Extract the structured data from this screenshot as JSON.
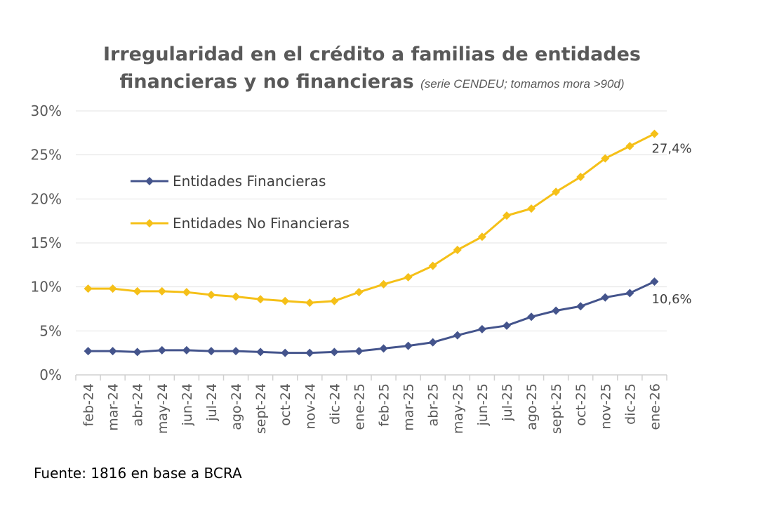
{
  "chart_data": {
    "type": "line",
    "title": "Irregularidad en el crédito a familias de entidades financieras y no financieras",
    "title_line1": "Irregularidad en el crédito a familias de entidades",
    "title_line2": "financieras y no financieras",
    "subtitle": "(serie CENDEU; tomamos mora >90d)",
    "categories": [
      "feb-24",
      "mar-24",
      "abr-24",
      "may-24",
      "jun-24",
      "jul-24",
      "ago-24",
      "sept-24",
      "oct-24",
      "nov-24",
      "dic-24",
      "ene-25",
      "feb-25",
      "mar-25",
      "abr-25",
      "may-25",
      "jun-25",
      "jul-25",
      "ago-25",
      "sept-25",
      "oct-25",
      "nov-25",
      "dic-25",
      "ene-26"
    ],
    "yticks": [
      "0%",
      "5%",
      "10%",
      "15%",
      "20%",
      "25%",
      "30%"
    ],
    "ylim": [
      0,
      30
    ],
    "grid": true,
    "legend_position": "top-left",
    "series": [
      {
        "name": "Entidades Financieras",
        "color": "#44548C",
        "values": [
          2.7,
          2.7,
          2.6,
          2.8,
          2.8,
          2.7,
          2.7,
          2.6,
          2.5,
          2.5,
          2.6,
          2.7,
          3.0,
          3.3,
          3.7,
          4.5,
          5.2,
          5.6,
          6.6,
          7.3,
          7.8,
          8.8,
          9.3,
          10.6
        ],
        "end_label": "10,6%"
      },
      {
        "name": "Entidades No Financieras",
        "color": "#F5C018",
        "values": [
          9.8,
          9.8,
          9.5,
          9.5,
          9.4,
          9.1,
          8.9,
          8.6,
          8.4,
          8.2,
          8.4,
          9.4,
          10.3,
          11.1,
          12.4,
          14.2,
          15.7,
          18.1,
          18.9,
          20.8,
          22.5,
          24.6,
          26.0,
          27.4
        ],
        "end_label": "27,4%"
      }
    ]
  },
  "source": "Fuente: 1816 en base a BCRA"
}
